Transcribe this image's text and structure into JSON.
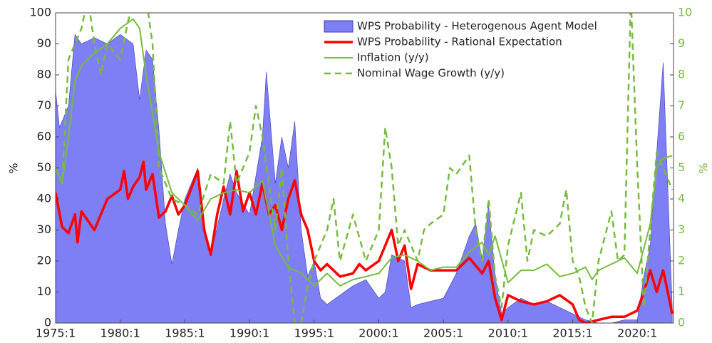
{
  "chart_data": {
    "type": "line",
    "ylabel": "%",
    "y2label": "%",
    "xlim": [
      1975,
      2022.8
    ],
    "xticks": [
      {
        "value": 1975,
        "label": "1975:1"
      },
      {
        "value": 1980,
        "label": "1980:1"
      },
      {
        "value": 1985,
        "label": "1985:1"
      },
      {
        "value": 1990,
        "label": "1990:1"
      },
      {
        "value": 1995,
        "label": "1995:1"
      },
      {
        "value": 2000,
        "label": "2000:1"
      },
      {
        "value": 2005,
        "label": "2005:1"
      },
      {
        "value": 2010,
        "label": "2010:1"
      },
      {
        "value": 2015,
        "label": "2015:1"
      },
      {
        "value": 2020,
        "label": "2020:1"
      }
    ],
    "ylim": [
      0,
      100
    ],
    "yticks": [
      0,
      10,
      20,
      30,
      40,
      50,
      60,
      70,
      80,
      90,
      100
    ],
    "y2lim": [
      0,
      10
    ],
    "y2ticks": [
      0,
      1,
      2,
      3,
      4,
      5,
      6,
      7,
      8,
      9,
      10
    ],
    "y2color": "#77bb3f",
    "legend": "upper-right",
    "series": [
      {
        "name": "WPS Probability - Heterogenous Agent Model",
        "style": "area",
        "color": "#7f7ff5",
        "edge": "#3c3cb0",
        "x": [
          1975,
          1975.3,
          1976,
          1976.5,
          1977,
          1978,
          1979,
          1980,
          1981,
          1981.5,
          1982,
          1982.5,
          1983,
          1983.5,
          1984,
          1984.5,
          1985,
          1986,
          1986.5,
          1987,
          1988,
          1988.5,
          1989,
          1990,
          1991,
          1991.3,
          1992,
          1992.5,
          1993,
          1993.5,
          1994,
          1994.5,
          1995,
          1995.5,
          1996,
          1997,
          1998,
          1999,
          2000,
          2000.5,
          2001,
          2002,
          2002.5,
          2003,
          2004,
          2005,
          2006,
          2007,
          2007.5,
          2008,
          2008.5,
          2009,
          2009.5,
          2010,
          2011,
          2012,
          2013,
          2014,
          2015,
          2016,
          2017,
          2018,
          2019,
          2020,
          2020.5,
          2021,
          2021.5,
          2022,
          2022.7
        ],
        "values": [
          75,
          63,
          70,
          93,
          90,
          92,
          90,
          93,
          90,
          72,
          88,
          85,
          62,
          32,
          19,
          30,
          40,
          50,
          30,
          22,
          40,
          48,
          42,
          35,
          60,
          81,
          45,
          60,
          50,
          65,
          30,
          15,
          20,
          8,
          6,
          9,
          12,
          14,
          8,
          10,
          22,
          20,
          5,
          6,
          7,
          8,
          16,
          28,
          32,
          20,
          38,
          15,
          3,
          5,
          8,
          6,
          7,
          5,
          3,
          1,
          0,
          0,
          1,
          1,
          15,
          25,
          55,
          84,
          5
        ]
      },
      {
        "name": "WPS Probability - Rational Expectation",
        "style": "thick",
        "color": "#ff0000",
        "x": [
          1975,
          1975.5,
          1976,
          1976.5,
          1976.7,
          1977,
          1978,
          1979,
          1980,
          1980.3,
          1980.6,
          1981,
          1981.5,
          1981.8,
          1982,
          1982.5,
          1983,
          1983.5,
          1984,
          1984.5,
          1985,
          1986,
          1986.5,
          1987,
          1987.5,
          1988,
          1988.5,
          1989,
          1989.5,
          1990,
          1990.5,
          1991,
          1991.5,
          1992,
          1992.5,
          1993,
          1993.5,
          1994,
          1994.5,
          1995,
          1995.5,
          1996,
          1997,
          1998,
          1998.5,
          1999,
          2000,
          2001,
          2001.5,
          2002,
          2002.5,
          2003,
          2004,
          2005,
          2006,
          2007,
          2008,
          2008.5,
          2009,
          2009.5,
          2010,
          2011,
          2012,
          2013,
          2014,
          2015,
          2015.5,
          2016,
          2017,
          2018,
          2019,
          2020,
          2020.5,
          2021,
          2021.5,
          2022,
          2022.7
        ],
        "values": [
          42,
          31,
          29,
          35,
          26,
          36,
          30,
          40,
          43,
          49,
          40,
          44,
          47,
          52,
          43,
          48,
          34,
          36,
          41,
          35,
          38,
          49,
          30,
          22,
          35,
          44,
          35,
          49,
          36,
          42,
          35,
          45,
          35,
          38,
          30,
          40,
          46,
          35,
          30,
          20,
          17,
          19,
          15,
          16,
          19,
          17,
          20,
          30,
          20,
          25,
          11,
          19,
          17,
          17,
          17,
          21,
          16,
          20,
          8,
          1,
          9,
          7,
          6,
          7,
          9,
          6,
          1,
          0,
          1,
          2,
          2,
          4,
          10,
          17,
          10,
          17,
          3
        ]
      },
      {
        "name": "Inflation (y/y)",
        "style": "solid",
        "axis": "y2",
        "color": "#77bb3f",
        "x": [
          1975,
          1975.5,
          1976,
          1976.5,
          1977,
          1978,
          1979,
          1980,
          1981,
          1981.5,
          1982,
          1983,
          1984,
          1985,
          1986,
          1987,
          1988,
          1989,
          1990,
          1991,
          1992,
          1993,
          1994,
          1995,
          1996,
          1997,
          1998,
          1999,
          2000,
          2001,
          2002,
          2003,
          2004,
          2005,
          2006,
          2007,
          2008,
          2008.5,
          2009,
          2010,
          2011,
          2012,
          2013,
          2014,
          2015,
          2016,
          2016.5,
          2017,
          2018,
          2019,
          2020,
          2021,
          2021.5,
          2022,
          2022.7
        ],
        "values": [
          5,
          4.5,
          6,
          7.8,
          8.3,
          8.7,
          9,
          9.5,
          9.8,
          9.5,
          8,
          5.5,
          4.2,
          3.8,
          3.3,
          4,
          4.2,
          4.3,
          4.2,
          4.6,
          2.5,
          1.8,
          1.6,
          1.2,
          1.6,
          1.2,
          1.4,
          1.5,
          1.6,
          2.1,
          2.2,
          2,
          1.7,
          1.8,
          1.8,
          2.3,
          2.6,
          2.2,
          2.8,
          1.3,
          1.7,
          1.7,
          1.9,
          1.5,
          1.6,
          1.8,
          1.4,
          1.7,
          1.9,
          2.1,
          1.6,
          3.2,
          5,
          5.3,
          5.4
        ]
      },
      {
        "name": "Nominal Wage Growth (y/y)",
        "style": "dashed",
        "axis": "y2",
        "color": "#77bb3f",
        "x": [
          1975,
          1975.5,
          1976,
          1977,
          1977.5,
          1978,
          1978.5,
          1979,
          1980,
          1981,
          1982,
          1982.5,
          1983,
          1984,
          1985,
          1986,
          1987,
          1988,
          1988.5,
          1989,
          1990,
          1990.5,
          1991,
          1992,
          1992.5,
          1993,
          1993.5,
          1994,
          1994.5,
          1995,
          1996,
          1996.5,
          1997,
          1998,
          1999,
          2000,
          2000.5,
          2001,
          2001.5,
          2002,
          2003,
          2003.5,
          2004,
          2005,
          2005.5,
          2006,
          2007,
          2007.5,
          2008,
          2008.5,
          2009,
          2009.5,
          2010,
          2011,
          2011.5,
          2012,
          2013,
          2014,
          2014.5,
          2015,
          2015.5,
          2016,
          2016.5,
          2017,
          2018,
          2018.5,
          2019,
          2019.5,
          2020,
          2020.5,
          2021,
          2021.5,
          2022,
          2022.7
        ],
        "values": [
          5,
          4.5,
          8.5,
          9.5,
          10.5,
          9,
          8,
          9,
          8.5,
          10.5,
          10.5,
          9,
          5,
          4,
          3.8,
          3.5,
          4.8,
          4.5,
          6.5,
          4.5,
          5.5,
          7,
          6,
          3,
          5,
          2,
          0,
          0,
          1.2,
          2,
          3,
          4,
          2,
          3.5,
          2,
          3,
          6.3,
          5,
          2.5,
          3,
          2,
          3,
          3.2,
          3.5,
          5,
          4.8,
          5.4,
          3,
          2,
          4,
          1.5,
          0.5,
          2.5,
          4.2,
          2,
          3,
          2.8,
          3.2,
          4.3,
          2,
          1.5,
          0.5,
          0,
          2,
          3.6,
          2,
          2.2,
          10.5,
          5,
          0.5,
          3,
          5.5,
          5,
          4.3
        ]
      }
    ]
  }
}
